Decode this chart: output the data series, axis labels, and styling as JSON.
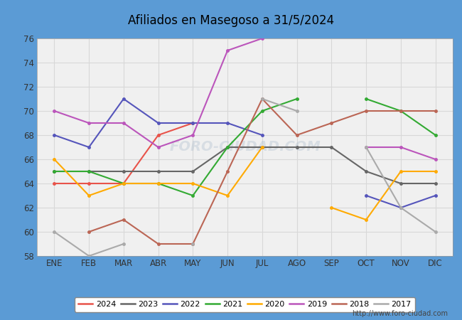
{
  "title": "Afiliados en Masegoso a 31/5/2024",
  "title_bg_color": "#5b9bd5",
  "ylim": [
    58,
    76
  ],
  "yticks": [
    58,
    60,
    62,
    64,
    66,
    68,
    70,
    72,
    74,
    76
  ],
  "months": [
    "ENE",
    "FEB",
    "MAR",
    "ABR",
    "MAY",
    "JUN",
    "JUL",
    "AGO",
    "SEP",
    "OCT",
    "NOV",
    "DIC"
  ],
  "series_order": [
    "2024",
    "2023",
    "2022",
    "2021",
    "2020",
    "2019",
    "2018",
    "2017"
  ],
  "series": {
    "2024": {
      "color": "#e8534a",
      "data": [
        64,
        64,
        64,
        68,
        69,
        null,
        null,
        null,
        null,
        null,
        null,
        null
      ]
    },
    "2023": {
      "color": "#666666",
      "data": [
        65,
        65,
        65,
        65,
        65,
        67,
        67,
        67,
        67,
        65,
        64,
        64
      ]
    },
    "2022": {
      "color": "#5555bb",
      "data": [
        68,
        67,
        71,
        69,
        69,
        69,
        68,
        null,
        null,
        63,
        62,
        63
      ]
    },
    "2021": {
      "color": "#33aa33",
      "data": [
        65,
        65,
        64,
        64,
        63,
        67,
        70,
        71,
        null,
        71,
        70,
        68
      ]
    },
    "2020": {
      "color": "#ffaa00",
      "data": [
        66,
        63,
        64,
        64,
        64,
        63,
        67,
        null,
        62,
        61,
        65,
        65
      ]
    },
    "2019": {
      "color": "#bb55bb",
      "data": [
        70,
        69,
        69,
        67,
        68,
        75,
        76,
        null,
        null,
        67,
        67,
        66
      ]
    },
    "2018": {
      "color": "#bb6655",
      "data": [
        null,
        60,
        61,
        59,
        59,
        65,
        71,
        68,
        69,
        70,
        70,
        70
      ]
    },
    "2017": {
      "color": "#aaaaaa",
      "data": [
        60,
        58,
        59,
        null,
        59,
        null,
        71,
        70,
        null,
        67,
        62,
        60
      ]
    }
  },
  "url": "http://www.foro-ciudad.com",
  "plot_bg_color": "#f0f0f0",
  "fig_bg_color": "#5b9bd5",
  "watermark_text": "FORO-CIUDAD.COM",
  "grid_color": "#d8d8d8"
}
